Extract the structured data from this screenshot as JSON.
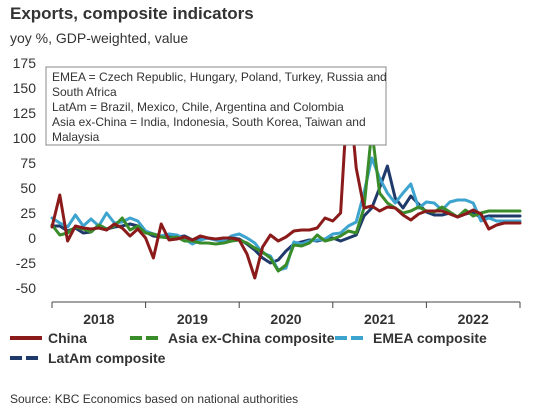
{
  "title": "Exports, composite indicators",
  "subtitle": "yoy %, GDP-weighted, value",
  "source": "Source: KBC Economics based on national authorities",
  "chart_data": {
    "type": "line",
    "title": "Exports, composite indicators",
    "subtitle": "yoy %, GDP-weighted, value",
    "xlabel": "",
    "ylabel": "",
    "ylim": [
      -50,
      175
    ],
    "yticks": [
      -50,
      -25,
      0,
      25,
      50,
      75,
      100,
      125,
      150,
      175
    ],
    "xlim": [
      0,
      60
    ],
    "xtick_labels": [
      "2018",
      "2019",
      "2020",
      "2021",
      "2022"
    ],
    "xtick_positions": [
      6,
      18,
      30,
      42,
      54
    ],
    "grid": false,
    "legend_placement": "bottom",
    "annotation_lines": [
      "EMEA = Czech Republic, Hungary, Poland, Turkey, Russia and",
      "South Africa",
      "LatAm = Brazil, Mexico, Chile, Argentina and Colombia",
      "Asia ex-China = India, Indonesia, South Korea, Taiwan and",
      "Malaysia"
    ],
    "series": [
      {
        "name": "China",
        "color": "#8B1A1A",
        "style": "solid",
        "values": [
          11,
          43,
          -3,
          12,
          10,
          9,
          10,
          8,
          14,
          10,
          2,
          9,
          0,
          -20,
          14,
          -2,
          -1,
          1,
          -2,
          2,
          0,
          -1,
          0,
          0,
          -2,
          -16,
          -40,
          -9,
          3,
          -3,
          1,
          7,
          8,
          8,
          10,
          20,
          17,
          25,
          155,
          70,
          30,
          32,
          27,
          31,
          30,
          23,
          18,
          24,
          27,
          27,
          27,
          24,
          21,
          24,
          28,
          24,
          9,
          13,
          15,
          15,
          15
        ]
      },
      {
        "name": "Asia ex-China composite",
        "color": "#3A8B2A",
        "style": "dashed",
        "values": [
          13,
          3,
          5,
          11,
          9,
          6,
          13,
          9,
          12,
          20,
          8,
          12,
          5,
          4,
          1,
          0,
          1,
          -3,
          -3,
          -5,
          -5,
          -6,
          -5,
          -3,
          -2,
          -5,
          -10,
          -14,
          -20,
          -33,
          -27,
          -7,
          -8,
          -5,
          3,
          -3,
          -1,
          2,
          7,
          5,
          30,
          108,
          45,
          35,
          30,
          25,
          27,
          31,
          27,
          26,
          31,
          26,
          21,
          28,
          22,
          25,
          27,
          27,
          27,
          27,
          27
        ]
      },
      {
        "name": "EMEA composite",
        "color": "#3DA3CF",
        "style": "dashed",
        "values": [
          20,
          15,
          11,
          23,
          12,
          19,
          12,
          25,
          15,
          16,
          20,
          17,
          7,
          4,
          2,
          4,
          3,
          -1,
          -6,
          -2,
          0,
          -2,
          -3,
          2,
          4,
          0,
          -5,
          -15,
          -18,
          -32,
          -30,
          -4,
          -6,
          -3,
          -2,
          -1,
          4,
          5,
          12,
          16,
          45,
          80,
          60,
          45,
          35,
          45,
          54,
          30,
          36,
          35,
          28,
          36,
          38,
          38,
          35,
          17,
          20,
          17,
          17,
          17,
          17
        ]
      },
      {
        "name": "LatAm composite",
        "color": "#1F3A6A",
        "style": "dashed",
        "values": [
          12,
          12,
          7,
          10,
          5,
          6,
          13,
          9,
          11,
          12,
          14,
          12,
          6,
          2,
          1,
          3,
          1,
          2,
          -2,
          -1,
          0,
          -2,
          -3,
          0,
          -1,
          -6,
          -12,
          -20,
          -25,
          -22,
          -13,
          -6,
          -4,
          -2,
          -3,
          -1,
          0,
          -3,
          0,
          3,
          22,
          30,
          50,
          72,
          40,
          30,
          42,
          34,
          26,
          23,
          23,
          25,
          21,
          24,
          26,
          20,
          22,
          22,
          22,
          22,
          22
        ]
      }
    ]
  }
}
